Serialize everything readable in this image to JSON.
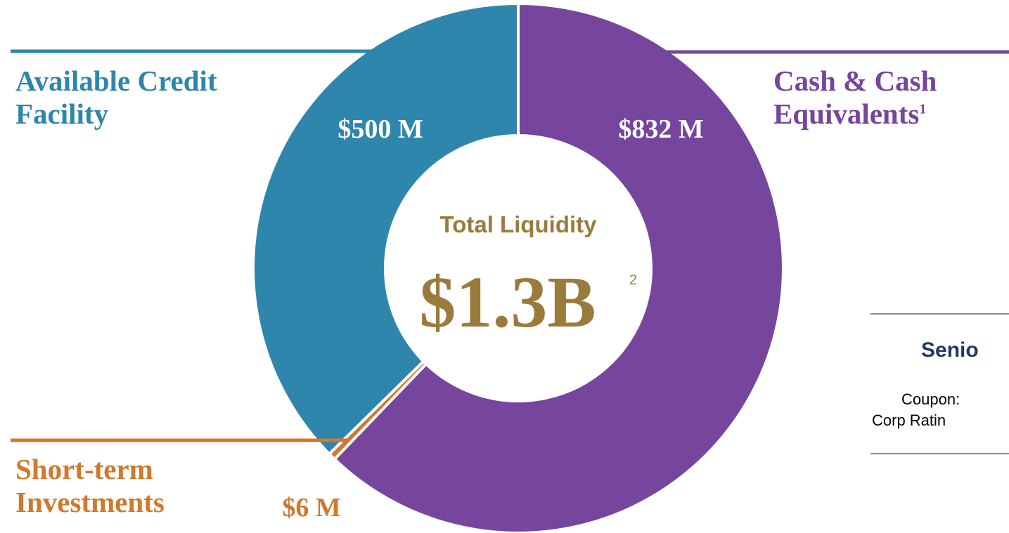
{
  "chart_data": {
    "type": "donut",
    "categories": [
      "Cash & Cash Equivalents",
      "Short-term Investments",
      "Available Credit Facility"
    ],
    "values": [
      832,
      6,
      500
    ],
    "value_labels": [
      "$832 M",
      "$6 M",
      "$500 M"
    ],
    "colors": [
      "#76459d",
      "#d2782b",
      "#2e86ad"
    ],
    "annotations": [
      {
        "category": 0,
        "text": "1"
      }
    ],
    "center_label": "Total Liquidity",
    "center_value": "$1.3B",
    "center_footnote": "2"
  },
  "side_panel": {
    "title": "Senio",
    "lines": [
      "Coupon:",
      "Corp Ratin"
    ]
  }
}
